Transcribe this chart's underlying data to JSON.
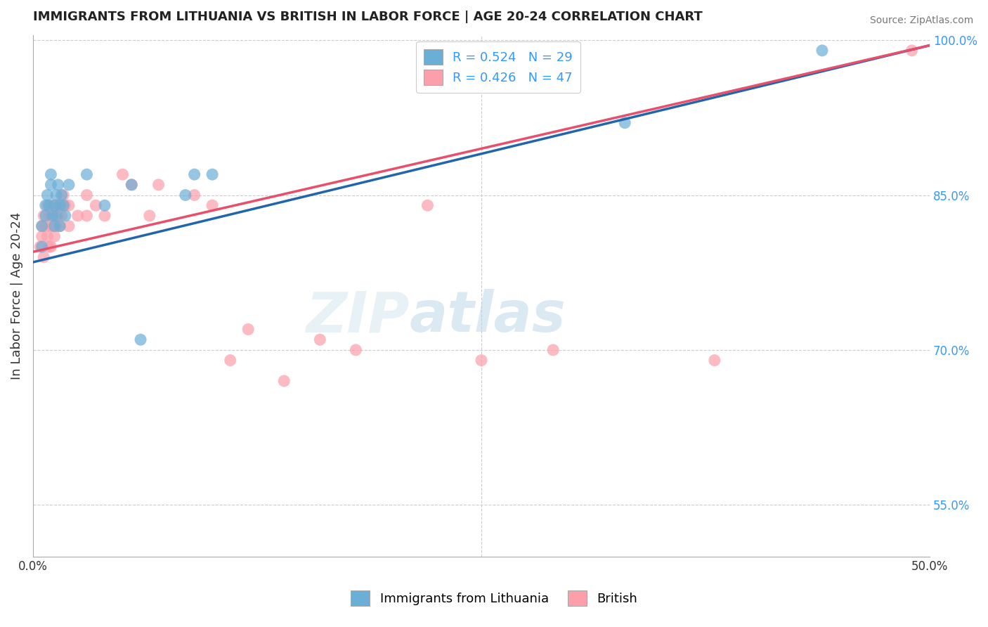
{
  "title": "IMMIGRANTS FROM LITHUANIA VS BRITISH IN LABOR FORCE | AGE 20-24 CORRELATION CHART",
  "source": "Source: ZipAtlas.com",
  "ylabel": "In Labor Force | Age 20-24",
  "xlim": [
    0.0,
    0.5
  ],
  "ylim": [
    0.5,
    1.005
  ],
  "xticks": [
    0.0,
    0.05,
    0.1,
    0.15,
    0.2,
    0.25,
    0.3,
    0.35,
    0.4,
    0.45,
    0.5
  ],
  "xticklabels": [
    "0.0%",
    "",
    "",
    "",
    "",
    "",
    "",
    "",
    "",
    "",
    "50.0%"
  ],
  "ytick_positions": [
    0.55,
    0.7,
    0.85,
    1.0
  ],
  "ytick_labels": [
    "55.0%",
    "70.0%",
    "85.0%",
    "100.0%"
  ],
  "legend_r_blue": "R = 0.524",
  "legend_n_blue": "N = 29",
  "legend_r_pink": "R = 0.426",
  "legend_n_pink": "N = 47",
  "blue_color": "#6baed6",
  "pink_color": "#fc9faa",
  "blue_line_color": "#2166ac",
  "pink_line_color": "#e84f6b",
  "legend_label_blue": "Immigrants from Lithuania",
  "legend_label_pink": "British",
  "blue_scatter_x": [
    0.005,
    0.005,
    0.007,
    0.007,
    0.008,
    0.009,
    0.01,
    0.01,
    0.011,
    0.012,
    0.012,
    0.013,
    0.013,
    0.014,
    0.015,
    0.015,
    0.016,
    0.017,
    0.018,
    0.02,
    0.03,
    0.04,
    0.055,
    0.06,
    0.085,
    0.09,
    0.1,
    0.33,
    0.44
  ],
  "blue_scatter_y": [
    0.8,
    0.82,
    0.84,
    0.83,
    0.85,
    0.84,
    0.86,
    0.87,
    0.83,
    0.84,
    0.82,
    0.85,
    0.83,
    0.86,
    0.84,
    0.82,
    0.85,
    0.84,
    0.83,
    0.86,
    0.87,
    0.84,
    0.86,
    0.71,
    0.85,
    0.87,
    0.87,
    0.92,
    0.99
  ],
  "pink_scatter_x": [
    0.004,
    0.005,
    0.005,
    0.006,
    0.006,
    0.007,
    0.008,
    0.008,
    0.009,
    0.009,
    0.01,
    0.01,
    0.011,
    0.011,
    0.012,
    0.012,
    0.013,
    0.013,
    0.014,
    0.015,
    0.015,
    0.016,
    0.017,
    0.018,
    0.02,
    0.02,
    0.025,
    0.03,
    0.03,
    0.035,
    0.04,
    0.05,
    0.055,
    0.065,
    0.07,
    0.09,
    0.1,
    0.11,
    0.12,
    0.14,
    0.16,
    0.18,
    0.22,
    0.25,
    0.29,
    0.38,
    0.49
  ],
  "pink_scatter_y": [
    0.8,
    0.81,
    0.82,
    0.83,
    0.79,
    0.82,
    0.81,
    0.84,
    0.8,
    0.83,
    0.82,
    0.8,
    0.84,
    0.82,
    0.83,
    0.81,
    0.84,
    0.82,
    0.83,
    0.84,
    0.82,
    0.83,
    0.85,
    0.84,
    0.82,
    0.84,
    0.83,
    0.85,
    0.83,
    0.84,
    0.83,
    0.87,
    0.86,
    0.83,
    0.86,
    0.85,
    0.84,
    0.69,
    0.72,
    0.67,
    0.71,
    0.7,
    0.84,
    0.69,
    0.7,
    0.69,
    0.99
  ],
  "blue_line_x": [
    0.0,
    0.5
  ],
  "blue_line_y": [
    0.785,
    0.995
  ],
  "pink_line_x": [
    0.0,
    0.5
  ],
  "pink_line_y": [
    0.795,
    0.995
  ],
  "watermark_zip": "ZIP",
  "watermark_atlas": "atlas",
  "background_color": "#ffffff",
  "grid_color": "#cccccc"
}
